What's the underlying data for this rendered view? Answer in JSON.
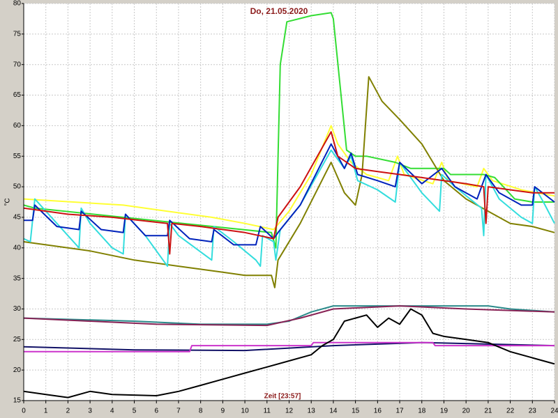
{
  "chart_data": {
    "type": "line",
    "title": "Do, 21.05.2020",
    "x_label": "Zeit [23:57]",
    "y_label": "°C",
    "xlim": [
      0,
      24
    ],
    "xticks": [
      0,
      1,
      2,
      3,
      4,
      5,
      6,
      7,
      8,
      9,
      10,
      11,
      12,
      13,
      14,
      15,
      16,
      17,
      18,
      19,
      20,
      21,
      22,
      23,
      24
    ],
    "ylim": [
      15,
      80
    ],
    "yticks": [
      15,
      20,
      25,
      30,
      35,
      40,
      45,
      50,
      55,
      60,
      65,
      70,
      75,
      80
    ],
    "grid": true,
    "series": [
      {
        "color": "#ffff33",
        "x": [
          0,
          4.5,
          6.5,
          8.5,
          10,
          11.3,
          12,
          13,
          13.9,
          14.2,
          14.8,
          15.5,
          16.5,
          16.9,
          17.2,
          18.5,
          18.9,
          19.2,
          20.5,
          20.8,
          21.2,
          22.5,
          23.2,
          24
        ],
        "values": [
          48,
          47,
          46,
          45,
          44,
          43,
          46,
          52,
          60,
          57,
          54,
          52,
          51,
          55,
          52,
          50.5,
          54,
          51,
          50,
          53,
          51,
          49.5,
          49,
          48.5
        ]
      },
      {
        "color": "#33dd33",
        "x": [
          0,
          0.5,
          11.2,
          11.4,
          11.6,
          11.9,
          13,
          13.9,
          14.0,
          14.6,
          15,
          15.5,
          16.8,
          17.5,
          19,
          19.3,
          20.8,
          21.3,
          22.2,
          23,
          24
        ],
        "values": [
          47,
          46.5,
          42.5,
          40,
          70,
          77,
          78,
          78.5,
          77.5,
          56,
          55,
          55,
          54,
          53,
          53,
          52,
          52,
          51.5,
          48,
          47.5,
          47.5
        ]
      },
      {
        "color": "#808000",
        "x": [
          0,
          1,
          3,
          5,
          7,
          9,
          10,
          11.2,
          11.35,
          11.5,
          12.5,
          13.9,
          14.5,
          15,
          15.3,
          15.6,
          16.2,
          17,
          18,
          19,
          20,
          21,
          22,
          23,
          24
        ],
        "values": [
          41,
          40.5,
          39.5,
          38,
          37,
          36,
          35.5,
          35.5,
          33.5,
          38,
          44,
          54,
          49,
          47,
          52,
          68,
          64,
          61,
          57,
          51,
          48,
          46,
          44,
          43.5,
          42.5
        ]
      },
      {
        "color": "#33dddd",
        "x": [
          0,
          0.3,
          0.5,
          1.5,
          2.5,
          2.6,
          3,
          4,
          4.5,
          4.6,
          5.5,
          6.5,
          6.6,
          7,
          8.5,
          8.6,
          9.5,
          10.5,
          10.7,
          10.8,
          11.3,
          11.4,
          11.6,
          12.5,
          13.9,
          14.5,
          14.8,
          15.1,
          16,
          16.8,
          17,
          18,
          18.8,
          18.9,
          19.5,
          20.7,
          20.8,
          20.9,
          21.5,
          22.5,
          23,
          23.1,
          23.5,
          24
        ],
        "values": [
          41.5,
          41,
          48,
          44,
          40,
          46.5,
          44,
          40,
          39,
          45.5,
          42,
          37,
          44,
          42,
          38,
          43.5,
          41,
          38,
          37,
          42,
          41,
          38,
          43,
          47,
          56,
          53,
          55,
          51,
          49.5,
          47.5,
          54,
          49,
          46,
          52,
          50,
          46.5,
          42,
          52,
          48,
          45,
          44,
          50,
          47.5,
          44
        ]
      },
      {
        "color": "#0022bb",
        "x": [
          0,
          0.4,
          0.5,
          1.5,
          2.5,
          2.6,
          3.5,
          4.5,
          4.6,
          5.5,
          6.5,
          6.6,
          7.5,
          8.5,
          8.6,
          9.5,
          10.5,
          10.7,
          11.3,
          11.5,
          12.5,
          13.9,
          14.5,
          14.8,
          15.1,
          16,
          16.8,
          17,
          18,
          18.9,
          19.5,
          20.5,
          20.9,
          21.5,
          22.5,
          23,
          23.1,
          24
        ],
        "values": [
          44.5,
          44.5,
          47,
          43.5,
          43,
          46,
          43,
          42.5,
          45.5,
          42,
          42,
          44.5,
          41.5,
          41,
          43,
          40.5,
          40.5,
          43.5,
          41.5,
          42.5,
          47,
          57,
          53,
          55.5,
          52,
          51,
          50,
          54,
          50.5,
          53,
          50,
          48,
          52,
          49,
          47,
          47,
          50,
          47.5
        ]
      },
      {
        "color": "#cc1111",
        "x": [
          0,
          2,
          4,
          6.5,
          6.6,
          6.7,
          8,
          10,
          11.3,
          11.5,
          12.5,
          13.9,
          14.2,
          15,
          16,
          17,
          18,
          19,
          20,
          20.8,
          20.9,
          21.0,
          22,
          23,
          24
        ],
        "values": [
          46.5,
          45.5,
          45,
          44,
          39,
          44,
          43.5,
          42.5,
          41.5,
          45,
          50,
          59,
          55,
          53,
          52.5,
          52,
          51.5,
          51,
          50.5,
          50,
          44,
          50,
          49.5,
          49,
          49
        ]
      },
      {
        "color": "#2a8a8a",
        "x": [
          0,
          5,
          8,
          11,
          12,
          13,
          14,
          16,
          19,
          21,
          22,
          24
        ],
        "values": [
          28.5,
          28,
          27.5,
          27.5,
          28,
          29.5,
          30.5,
          30.5,
          30.5,
          30.5,
          30,
          29.5
        ]
      },
      {
        "color": "#882255",
        "x": [
          0,
          6,
          11,
          12.5,
          14,
          17,
          20,
          24
        ],
        "values": [
          28.5,
          27.5,
          27.3,
          28.5,
          30,
          30.5,
          30,
          29.5
        ]
      },
      {
        "color": "#111166",
        "x": [
          0,
          5,
          10,
          14,
          18,
          24
        ],
        "values": [
          23.8,
          23.3,
          23.2,
          24,
          24.5,
          24
        ]
      },
      {
        "color": "#cc33cc",
        "x": [
          0,
          7.5,
          7.6,
          13,
          13.1,
          18.5,
          18.6,
          24
        ],
        "values": [
          23,
          23,
          24,
          24,
          24.5,
          24.5,
          24,
          24
        ]
      },
      {
        "color": "#000000",
        "x": [
          0,
          1,
          2,
          3,
          4,
          6,
          7,
          8,
          9,
          10,
          11,
          12,
          13,
          13.5,
          14,
          14.5,
          15,
          15.5,
          16,
          16.5,
          17,
          17.5,
          18,
          18.5,
          19,
          20,
          21,
          22,
          23,
          24
        ],
        "values": [
          16.5,
          16,
          15.5,
          16.5,
          16,
          15.8,
          16.5,
          17.5,
          18.5,
          19.5,
          20.5,
          21.5,
          22.5,
          24,
          25,
          28,
          28.5,
          29,
          27,
          28.5,
          27.5,
          30,
          29,
          26,
          25.5,
          25,
          24.5,
          23,
          22,
          21
        ]
      }
    ]
  }
}
